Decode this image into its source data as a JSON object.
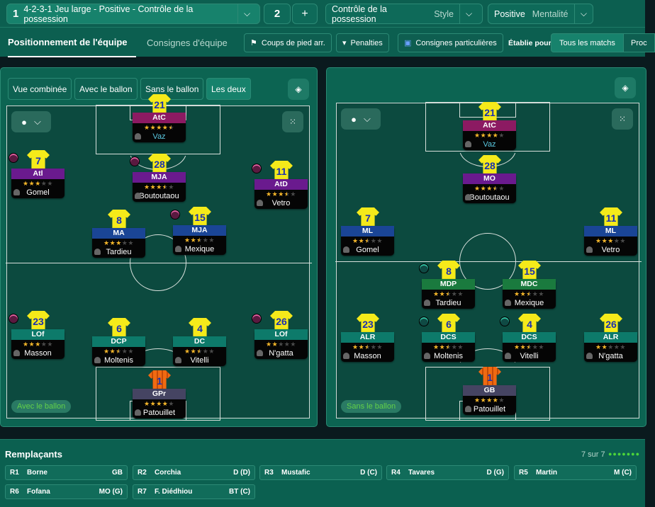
{
  "tactic_bar": {
    "slot1_number": "1",
    "slot1_name": "4-2-3-1 Jeu large - Positive - Contrôle de la possession",
    "slot2_number": "2",
    "add_label": "+",
    "style_value": "Contrôle de la possession",
    "style_label": "Style",
    "mentality_value": "Positive",
    "mentality_label": "Mentalité"
  },
  "tabs": {
    "positioning": "Positionnement de l'équipe",
    "instructions": "Consignes d'équipe"
  },
  "toolbar": {
    "set_pieces": "Coups de pied arr.",
    "penalties": "Penalties",
    "special": "Consignes particulières",
    "established_for": "Établie pour",
    "all_matches": "Tous les matchs",
    "next": "Proc"
  },
  "view_buttons": [
    "Vue combinée",
    "Avec le ballon",
    "Sans le ballon",
    "Les deux"
  ],
  "left_pitch": {
    "phase_label": "Avec le ballon",
    "players": [
      {
        "num": "21",
        "role": "AtC",
        "stars": 4.5,
        "name": "Vaz",
        "color": "#8c1a62",
        "highlight": true
      },
      {
        "num": "7",
        "role": "Atl",
        "stars": 3,
        "name": "Gomel",
        "color": "#6a1a8e",
        "badge": "pink"
      },
      {
        "num": "28",
        "role": "MJA",
        "stars": 3.5,
        "name": "Boutoutaou",
        "color": "#6a1a8e",
        "badge": "pink"
      },
      {
        "num": "11",
        "role": "AtD",
        "stars": 3.5,
        "name": "Vetro",
        "color": "#6a1a8e",
        "badge": "pink"
      },
      {
        "num": "8",
        "role": "MA",
        "stars": 3,
        "name": "Tardieu",
        "color": "#1a4596"
      },
      {
        "num": "15",
        "role": "MJA",
        "stars": 2.5,
        "name": "Mexique",
        "color": "#1a4596",
        "badge": "pink"
      },
      {
        "num": "23",
        "role": "LOf",
        "stars": 3,
        "name": "Masson",
        "color": "#0d7a6a",
        "badge": "pink"
      },
      {
        "num": "6",
        "role": "DCP",
        "stars": 2.5,
        "name": "Moltenis",
        "color": "#0d7a6a"
      },
      {
        "num": "4",
        "role": "DC",
        "stars": 2.5,
        "name": "Vitelli",
        "color": "#0d7a6a"
      },
      {
        "num": "26",
        "role": "LOf",
        "stars": 2,
        "name": "N'gatta",
        "color": "#0d7a6a",
        "badge": "pink"
      },
      {
        "num": "1",
        "role": "GPr",
        "stars": 4,
        "name": "Patouillet",
        "color": "#454462",
        "gk": true
      }
    ]
  },
  "right_pitch": {
    "phase_label": "Sans le ballon",
    "players": [
      {
        "num": "21",
        "role": "AtC",
        "stars": 4,
        "name": "Vaz",
        "color": "#8c1a62",
        "highlight": true
      },
      {
        "num": "28",
        "role": "MO",
        "stars": 3.5,
        "name": "Boutoutaou",
        "color": "#6a1a8e"
      },
      {
        "num": "7",
        "role": "ML",
        "stars": 2.5,
        "name": "Gomel",
        "color": "#1a4596"
      },
      {
        "num": "11",
        "role": "ML",
        "stars": 3,
        "name": "Vetro",
        "color": "#1a4596"
      },
      {
        "num": "8",
        "role": "MDP",
        "stars": 2.5,
        "name": "Tardieu",
        "color": "#1a7a3e",
        "badge": "teal"
      },
      {
        "num": "15",
        "role": "MDC",
        "stars": 2.5,
        "name": "Mexique",
        "color": "#1a7a3e"
      },
      {
        "num": "23",
        "role": "ALR",
        "stars": 2.5,
        "name": "Masson",
        "color": "#0d7a6a"
      },
      {
        "num": "6",
        "role": "DCS",
        "stars": 2.5,
        "name": "Moltenis",
        "color": "#0d7a6a",
        "badge": "teal"
      },
      {
        "num": "4",
        "role": "DCS",
        "stars": 2.5,
        "name": "Vitelli",
        "color": "#0d7a6a",
        "badge": "teal"
      },
      {
        "num": "26",
        "role": "ALR",
        "stars": 2,
        "name": "N'gatta",
        "color": "#0d7a6a"
      },
      {
        "num": "1",
        "role": "GB",
        "stars": 4,
        "name": "Patouillet",
        "color": "#454462",
        "gk": true
      }
    ]
  },
  "subs": {
    "title": "Remplaçants",
    "count": "7 sur 7",
    "filled": 7,
    "items": [
      {
        "slot": "R1",
        "name": "Borne",
        "pos": "GB"
      },
      {
        "slot": "R2",
        "name": "Corchia",
        "pos": "D (D)"
      },
      {
        "slot": "R3",
        "name": "Mustafic",
        "pos": "D (C)"
      },
      {
        "slot": "R4",
        "name": "Tavares",
        "pos": "D (G)"
      },
      {
        "slot": "R5",
        "name": "Martin",
        "pos": "M (C)"
      },
      {
        "slot": "R6",
        "name": "Fofana",
        "pos": "MO (G)"
      },
      {
        "slot": "R7",
        "name": "F. Diédhiou",
        "pos": "BT (C)"
      }
    ]
  },
  "colors": {
    "accent": "#17826c",
    "phase_text": "#62d14a",
    "star": "#f4b62a",
    "shirt": "#f5ea1a",
    "shirt_number": "#1a2fb0"
  }
}
